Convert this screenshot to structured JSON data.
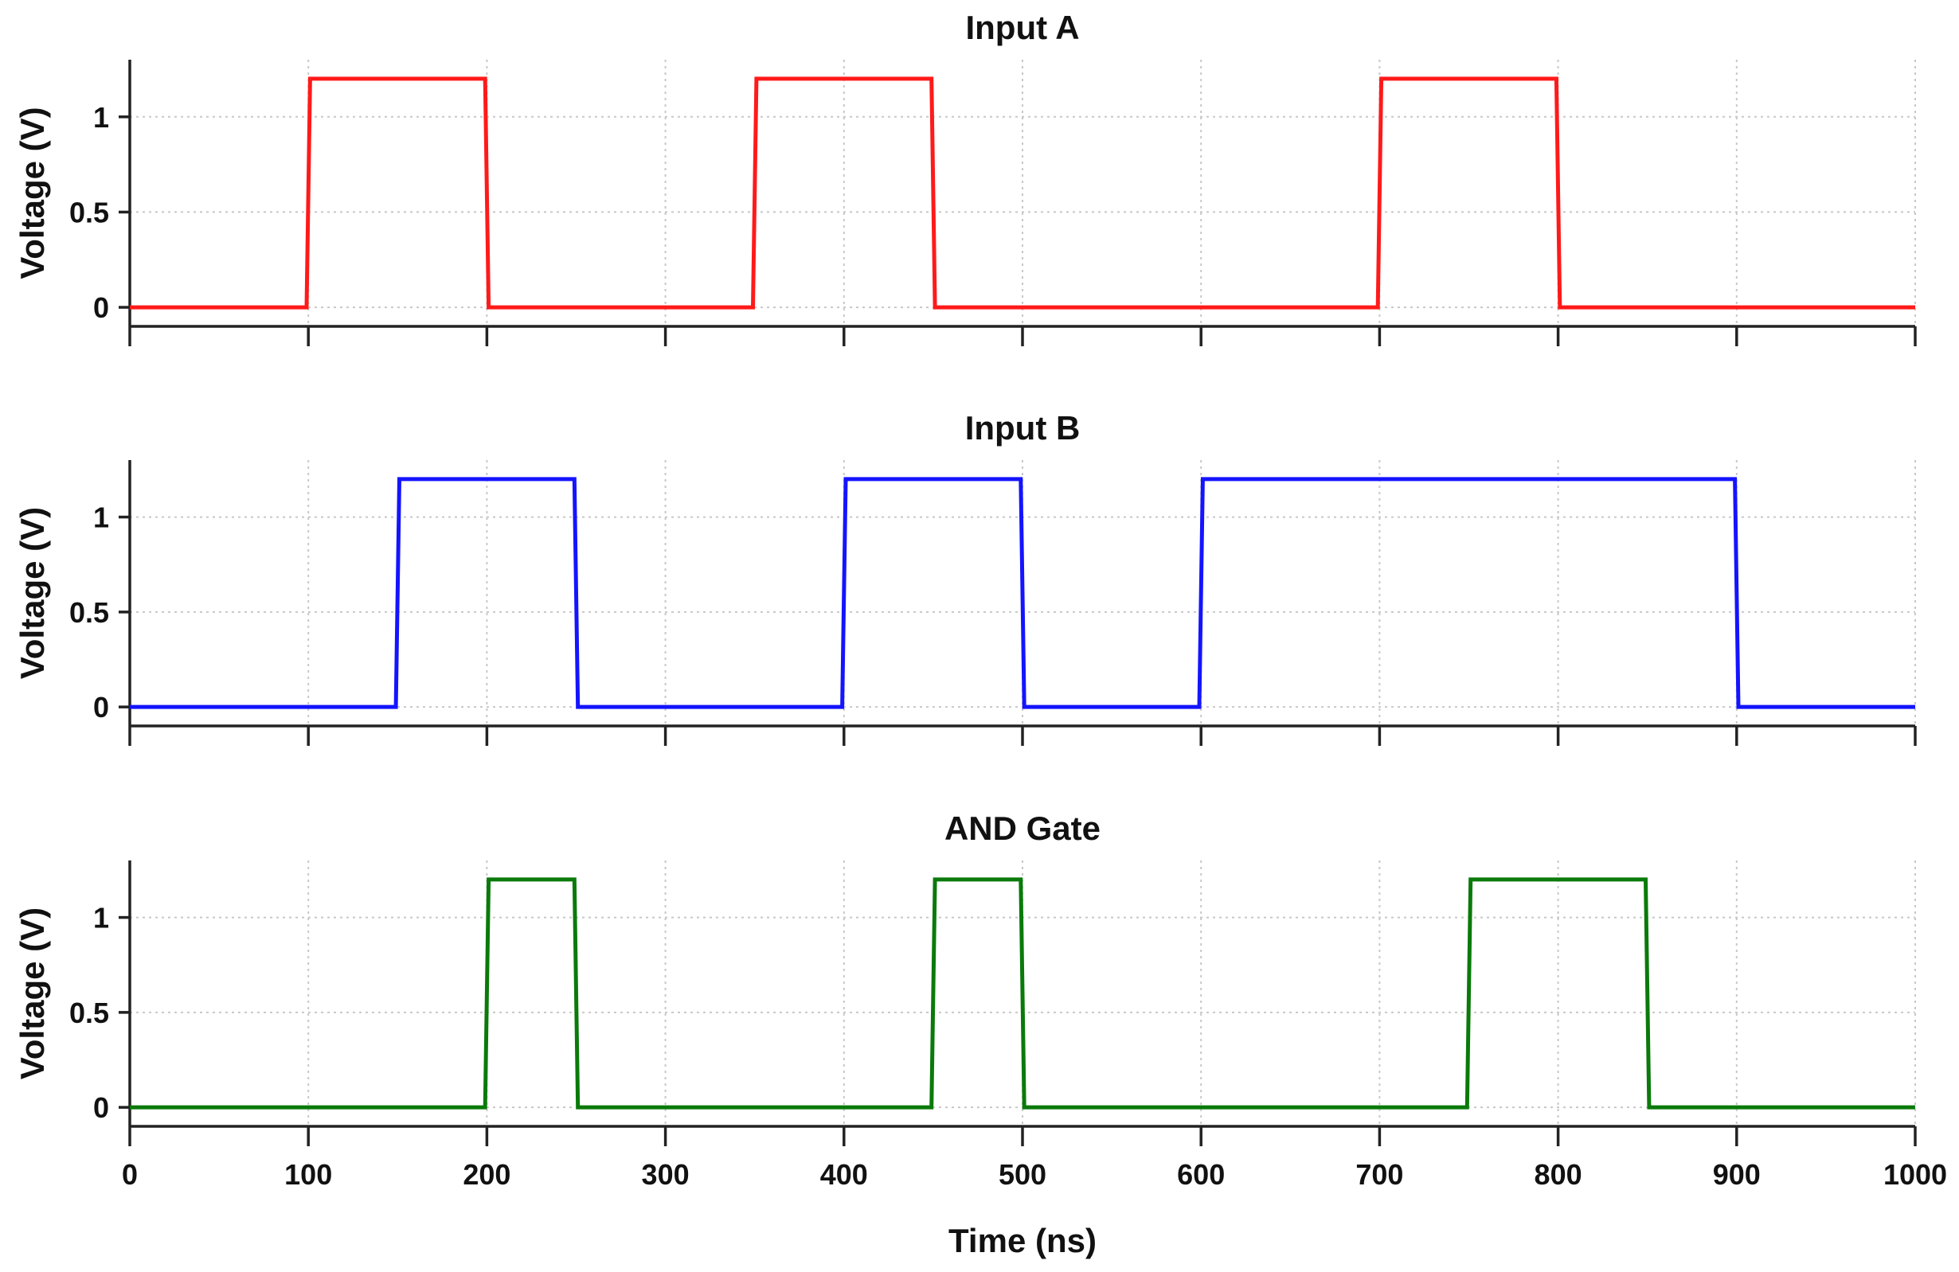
{
  "chart_data": [
    {
      "type": "line",
      "title": "Input A",
      "ylabel": "Voltage (V)",
      "xlabel": "",
      "xlim": [
        0,
        1000
      ],
      "ylim": [
        -0.1,
        1.3
      ],
      "xticks": [
        0,
        100,
        200,
        300,
        400,
        500,
        600,
        700,
        800,
        900,
        1000
      ],
      "xtick_labels_visible": false,
      "yticks": [
        0,
        0.5,
        1
      ],
      "ytick_labels": [
        "0",
        "0.5",
        "1"
      ],
      "grid": true,
      "color": "#ff1a1a",
      "series": [
        {
          "name": "Input A",
          "x": [
            0,
            99,
            101,
            199,
            201,
            349,
            351,
            449,
            451,
            699,
            701,
            799,
            801,
            1000
          ],
          "y": [
            0,
            0,
            1.2,
            1.2,
            0,
            0,
            1.2,
            1.2,
            0,
            0,
            1.2,
            1.2,
            0,
            0
          ]
        }
      ]
    },
    {
      "type": "line",
      "title": "Input B",
      "ylabel": "Voltage (V)",
      "xlabel": "",
      "xlim": [
        0,
        1000
      ],
      "ylim": [
        -0.1,
        1.3
      ],
      "xticks": [
        0,
        100,
        200,
        300,
        400,
        500,
        600,
        700,
        800,
        900,
        1000
      ],
      "xtick_labels_visible": false,
      "yticks": [
        0,
        0.5,
        1
      ],
      "ytick_labels": [
        "0",
        "0.5",
        "1"
      ],
      "grid": true,
      "color": "#1414ff",
      "series": [
        {
          "name": "Input B",
          "x": [
            0,
            149,
            151,
            249,
            251,
            399,
            401,
            499,
            501,
            599,
            601,
            899,
            901,
            1000
          ],
          "y": [
            0,
            0,
            1.2,
            1.2,
            0,
            0,
            1.2,
            1.2,
            0,
            0,
            1.2,
            1.2,
            0,
            0
          ]
        }
      ]
    },
    {
      "type": "line",
      "title": "AND Gate",
      "ylabel": "Voltage (V)",
      "xlabel": "Time (ns)",
      "xlim": [
        0,
        1000
      ],
      "ylim": [
        -0.1,
        1.3
      ],
      "xticks": [
        0,
        100,
        200,
        300,
        400,
        500,
        600,
        700,
        800,
        900,
        1000
      ],
      "xtick_labels_visible": true,
      "xtick_labels": [
        "0",
        "100",
        "200",
        "300",
        "400",
        "500",
        "600",
        "700",
        "800",
        "900",
        "1000"
      ],
      "yticks": [
        0,
        0.5,
        1
      ],
      "ytick_labels": [
        "0",
        "0.5",
        "1"
      ],
      "grid": true,
      "color": "#0a7a0a",
      "series": [
        {
          "name": "AND Gate",
          "x": [
            0,
            199,
            201,
            249,
            251,
            449,
            451,
            499,
            501,
            749,
            751,
            849,
            851,
            1000
          ],
          "y": [
            0,
            0,
            1.2,
            1.2,
            0,
            0,
            1.2,
            1.2,
            0,
            0,
            1.2,
            1.2,
            0,
            0
          ]
        }
      ]
    }
  ]
}
